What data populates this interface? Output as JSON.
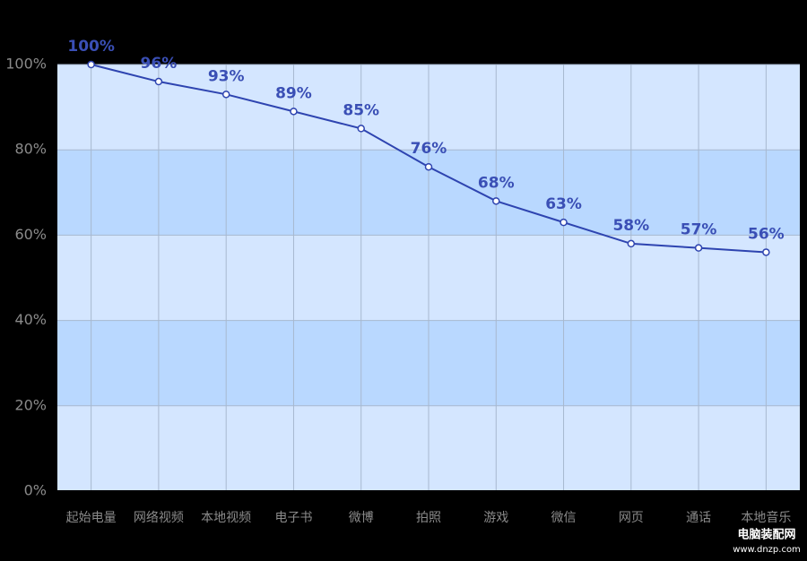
{
  "chart_data": {
    "type": "line",
    "categories": [
      "起始电量",
      "网络视频",
      "本地视频",
      "电子书",
      "微博",
      "拍照",
      "游戏",
      "微信",
      "网页",
      "通话",
      "本地音乐"
    ],
    "series": [
      {
        "color": "#2e44b0",
        "values": [
          100,
          96,
          93,
          89,
          85,
          76,
          68,
          63,
          58,
          57,
          56
        ],
        "value_labels": [
          "100%",
          "96%",
          "93%",
          "89%",
          "85%",
          "76%",
          "68%",
          "63%",
          "58%",
          "57%",
          "56%"
        ]
      }
    ],
    "ylim": [
      0,
      100
    ],
    "yticks": [
      {
        "value": 0,
        "label": "0%"
      },
      {
        "value": 20,
        "label": "20%"
      },
      {
        "value": 40,
        "label": "40%"
      },
      {
        "value": 60,
        "label": "60%"
      },
      {
        "value": 80,
        "label": "80%"
      },
      {
        "value": 100,
        "label": "100%"
      }
    ],
    "grid": true,
    "band_colors": [
      "#d4e6ff",
      "#b9d8ff"
    ]
  },
  "watermark": {
    "title": "电脑装配网",
    "url": "www.dnzp.com"
  }
}
